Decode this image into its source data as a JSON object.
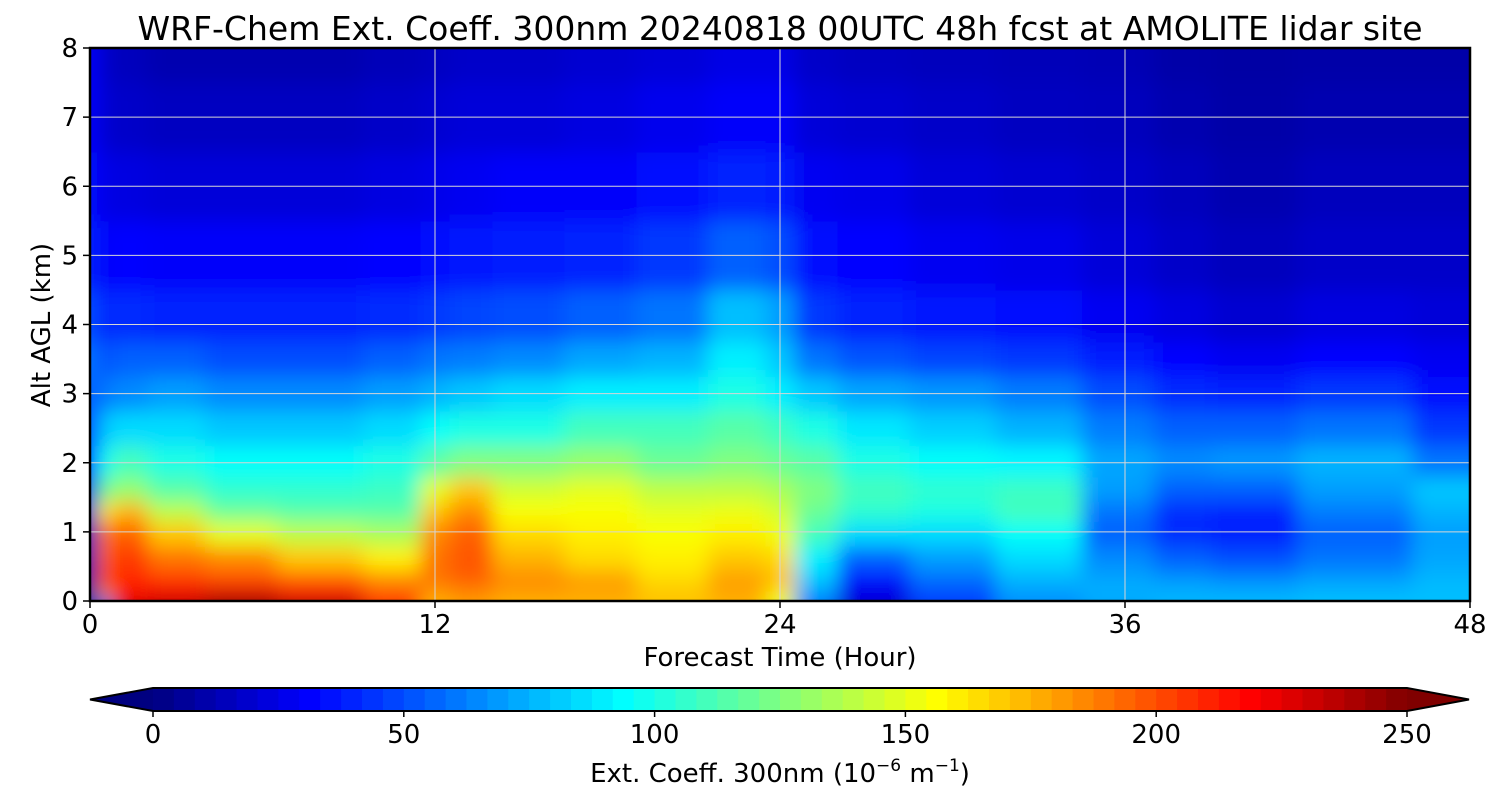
{
  "chart_data": {
    "type": "heatmap",
    "title": "WRF-Chem Ext. Coeff. 300nm  20240818 00UTC 48h fcst at AMOLITE lidar site",
    "xlabel": "Forecast Time (Hour)",
    "ylabel": "Alt AGL (km)",
    "x_ticks": [
      0,
      12,
      24,
      36,
      48
    ],
    "y_ticks": [
      0,
      1,
      2,
      3,
      4,
      5,
      6,
      7,
      8
    ],
    "xlim": [
      0,
      48
    ],
    "ylim": [
      0,
      8
    ],
    "grid": true,
    "colormap": "jet",
    "colorbar": {
      "label_main": "Ext. Coeff. 300nm  (10",
      "label_exp1": "−6",
      "label_mid": " m",
      "label_exp2": "−1",
      "label_end": ")",
      "range": [
        0,
        250
      ],
      "ticks": [
        0,
        50,
        100,
        150,
        200,
        250
      ],
      "extend": "both",
      "orientation": "horizontal"
    },
    "x_hours": [
      0,
      0.5,
      1,
      3,
      5,
      8,
      11,
      12,
      13,
      15,
      18,
      20,
      23,
      24,
      25,
      27,
      30,
      33,
      36,
      38,
      40,
      44,
      48
    ],
    "y_km": [
      0,
      0.1,
      0.3,
      0.6,
      1.0,
      1.3,
      1.6,
      2.0,
      2.5,
      3.0,
      3.5,
      4.0,
      5.0,
      6.0,
      7.0,
      8.0
    ],
    "values": [
      [
        5,
        8,
        10,
        12,
        15,
        20,
        25,
        35,
        45,
        55,
        60,
        50,
        40,
        35,
        30,
        30
      ],
      [
        60,
        180,
        200,
        195,
        190,
        160,
        120,
        95,
        80,
        60,
        50,
        40,
        30,
        25,
        20,
        18
      ],
      [
        230,
        215,
        210,
        205,
        195,
        175,
        130,
        110,
        85,
        65,
        55,
        42,
        32,
        24,
        18,
        15
      ],
      [
        235,
        222,
        205,
        190,
        170,
        140,
        115,
        100,
        85,
        70,
        55,
        40,
        30,
        22,
        16,
        12
      ],
      [
        245,
        228,
        200,
        185,
        150,
        120,
        105,
        95,
        80,
        65,
        50,
        40,
        30,
        22,
        16,
        12
      ],
      [
        238,
        215,
        195,
        170,
        140,
        115,
        105,
        95,
        80,
        65,
        50,
        40,
        30,
        22,
        16,
        12
      ],
      [
        210,
        195,
        185,
        160,
        135,
        115,
        108,
        100,
        85,
        70,
        55,
        42,
        32,
        24,
        18,
        14
      ],
      [
        175,
        180,
        190,
        190,
        185,
        170,
        150,
        115,
        95,
        75,
        60,
        45,
        35,
        26,
        20,
        16
      ],
      [
        180,
        185,
        195,
        198,
        195,
        185,
        170,
        125,
        100,
        80,
        62,
        48,
        36,
        28,
        22,
        18
      ],
      [
        175,
        180,
        185,
        175,
        165,
        155,
        145,
        125,
        100,
        85,
        65,
        50,
        38,
        30,
        22,
        18
      ],
      [
        175,
        178,
        180,
        165,
        160,
        155,
        150,
        130,
        110,
        90,
        72,
        55,
        40,
        30,
        24,
        20
      ],
      [
        170,
        172,
        165,
        160,
        155,
        150,
        140,
        120,
        110,
        90,
        75,
        60,
        45,
        35,
        27,
        22
      ],
      [
        175,
        178,
        180,
        170,
        160,
        152,
        140,
        125,
        115,
        100,
        90,
        78,
        55,
        40,
        30,
        25
      ],
      [
        150,
        160,
        172,
        165,
        152,
        145,
        135,
        120,
        108,
        90,
        80,
        70,
        50,
        38,
        30,
        25
      ],
      [
        60,
        70,
        80,
        90,
        110,
        120,
        125,
        115,
        100,
        80,
        60,
        45,
        35,
        28,
        22,
        18
      ],
      [
        20,
        25,
        35,
        55,
        85,
        105,
        110,
        100,
        88,
        72,
        52,
        40,
        32,
        26,
        20,
        16
      ],
      [
        45,
        50,
        58,
        70,
        85,
        100,
        105,
        95,
        82,
        68,
        48,
        36,
        28,
        22,
        18,
        15
      ],
      [
        65,
        70,
        75,
        85,
        95,
        110,
        108,
        92,
        75,
        62,
        45,
        34,
        26,
        20,
        16,
        14
      ],
      [
        72,
        75,
        72,
        65,
        55,
        60,
        70,
        72,
        62,
        50,
        38,
        28,
        22,
        18,
        15,
        13
      ],
      [
        75,
        76,
        68,
        55,
        42,
        42,
        55,
        65,
        55,
        42,
        32,
        24,
        18,
        15,
        12,
        10
      ],
      [
        76,
        75,
        65,
        50,
        38,
        40,
        55,
        68,
        55,
        40,
        28,
        20,
        15,
        12,
        10,
        9
      ],
      [
        78,
        77,
        70,
        60,
        55,
        62,
        70,
        75,
        60,
        45,
        32,
        24,
        18,
        15,
        12,
        10
      ],
      [
        78,
        78,
        76,
        72,
        70,
        75,
        80,
        60,
        45,
        35,
        28,
        22,
        18,
        15,
        12,
        10
      ]
    ]
  }
}
